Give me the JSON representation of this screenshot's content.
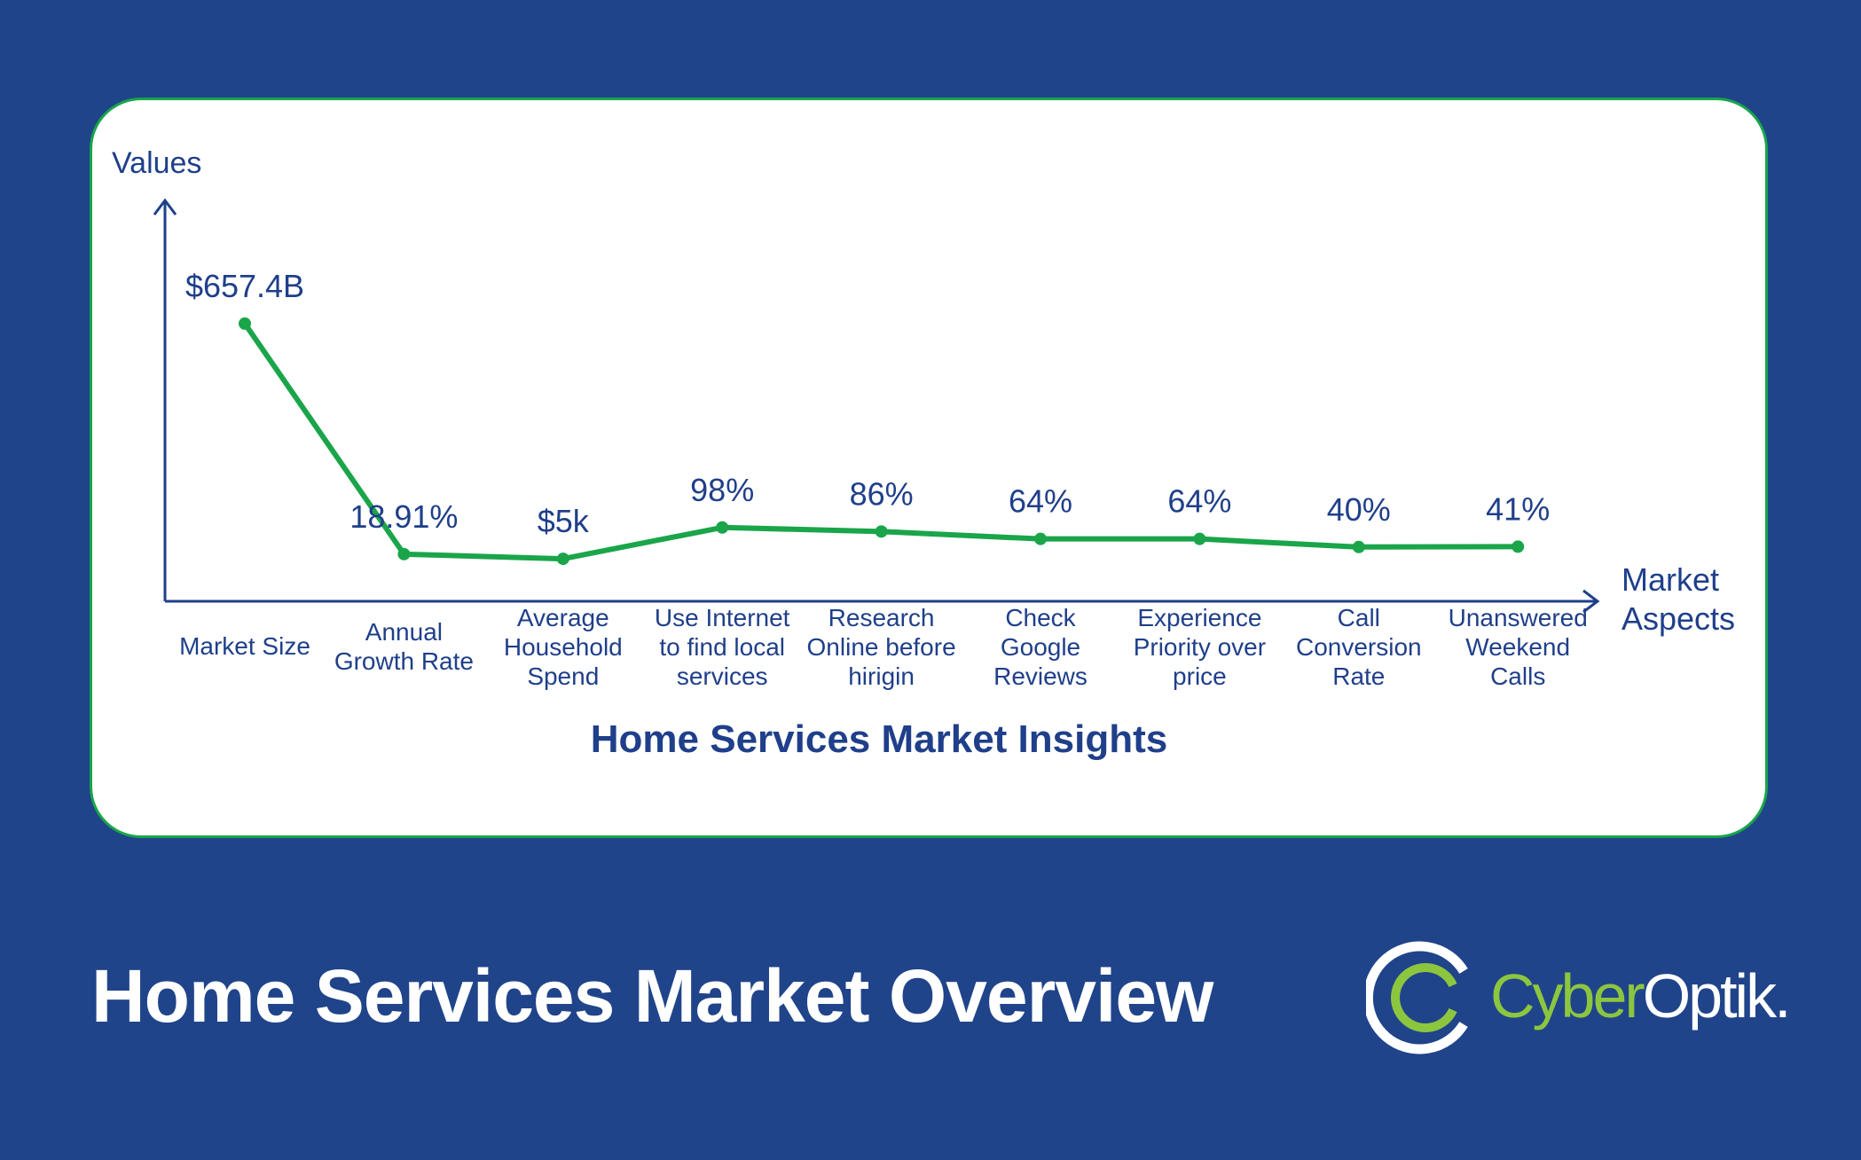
{
  "colors": {
    "background": "#20448a",
    "card": "#ffffff",
    "line": "#1aa54a",
    "text": "#1f3f8a",
    "logo_green": "#8cc63f"
  },
  "chart_data": {
    "type": "line",
    "title": "Home Services Market Insights",
    "xlabel": "Market Aspects",
    "ylabel": "Values",
    "categories": [
      "Market Size",
      "Annual Growth Rate",
      "Average Household Spend",
      "Use Internet to find local services",
      "Research Online before hirigin",
      "Check Google Reviews",
      "Experience Priority over price",
      "Call Conversion Rate",
      "Unanswered Weekend Calls"
    ],
    "category_lines": [
      [
        "Market Size"
      ],
      [
        "Annual",
        "Growth Rate"
      ],
      [
        "Average",
        "Household",
        "Spend"
      ],
      [
        "Use Internet",
        "to find local",
        "services"
      ],
      [
        "Research",
        "Online before",
        "hirigin"
      ],
      [
        "Check",
        "Google",
        "Reviews"
      ],
      [
        "Experience",
        "Priority over",
        "price"
      ],
      [
        "Call",
        "Conversion",
        "Rate"
      ],
      [
        "Unanswered",
        "Weekend",
        "Calls"
      ]
    ],
    "values": [
      657.4,
      18.91,
      5,
      98,
      86,
      64,
      64,
      40,
      41
    ],
    "data_labels": [
      "$657.4B",
      "18.91%",
      "$5k",
      "98%",
      "86%",
      "64%",
      "64%",
      "40%",
      "41%"
    ],
    "xlabel_lines": [
      "Market",
      "Aspects"
    ],
    "ylim": [
      0,
      760
    ],
    "grid": false
  },
  "footer": {
    "title": "Home Services Market Overview"
  },
  "logo": {
    "icon": "cyberoptik-ring-icon",
    "part1": "Cyber",
    "part2": "Optik."
  }
}
